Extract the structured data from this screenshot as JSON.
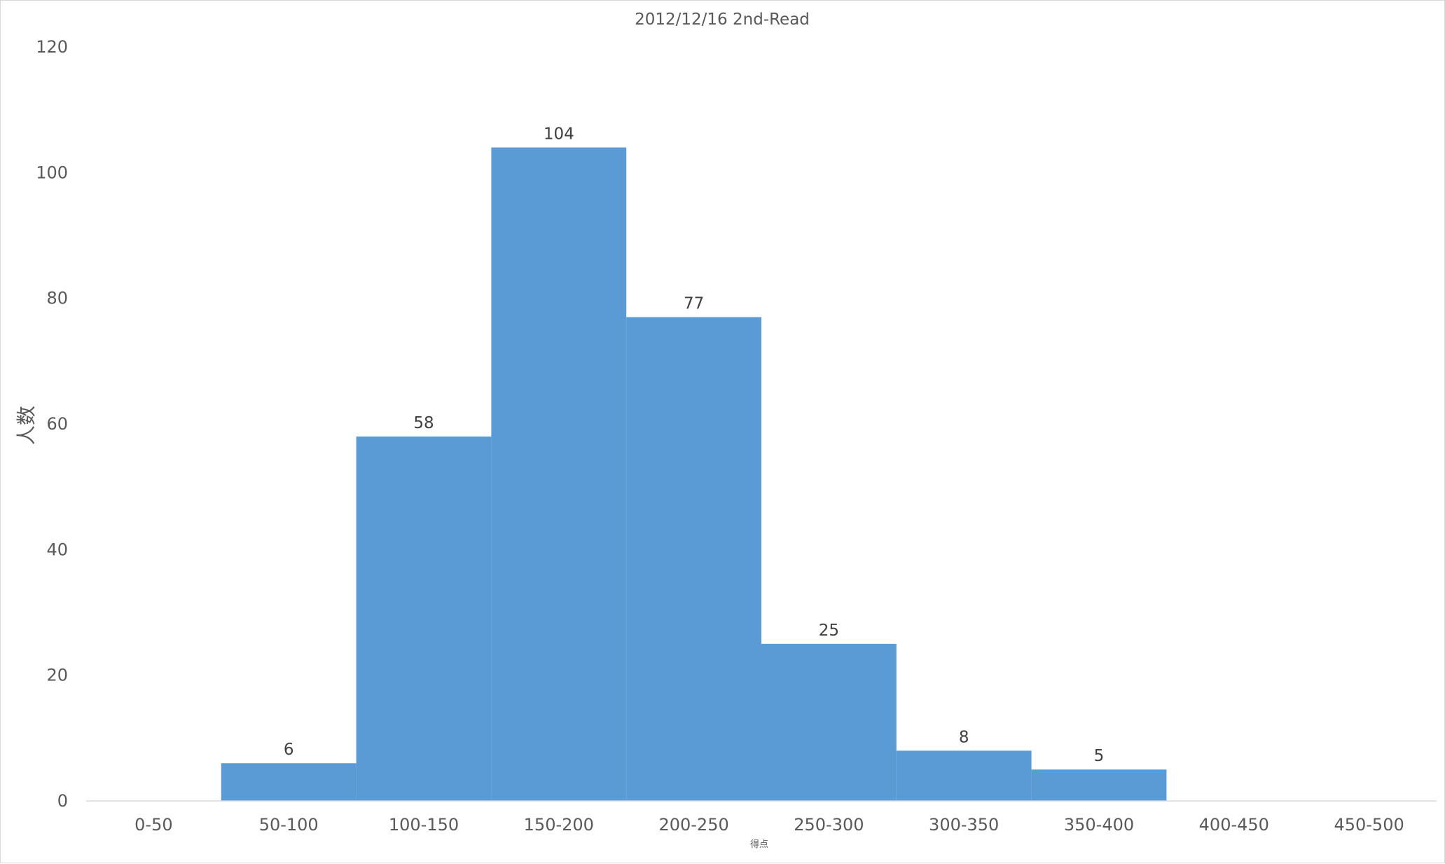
{
  "chart_data": {
    "type": "bar",
    "title": "2012/12/16 2nd-Read",
    "xlabel": "得点",
    "ylabel": "人数",
    "categories": [
      "0-50",
      "50-100",
      "100-150",
      "150-200",
      "200-250",
      "250-300",
      "300-350",
      "350-400",
      "400-450",
      "450-500"
    ],
    "values": [
      0,
      6,
      58,
      104,
      77,
      25,
      8,
      5,
      0,
      0
    ],
    "data_labels": [
      "",
      "6",
      "58",
      "104",
      "77",
      "25",
      "8",
      "5",
      "",
      ""
    ],
    "ylim": [
      0,
      120
    ],
    "yticks": [
      "0",
      "20",
      "40",
      "60",
      "80",
      "100",
      "120"
    ],
    "grid": false,
    "legend": "none",
    "bar_color": "#5b9bd5"
  }
}
